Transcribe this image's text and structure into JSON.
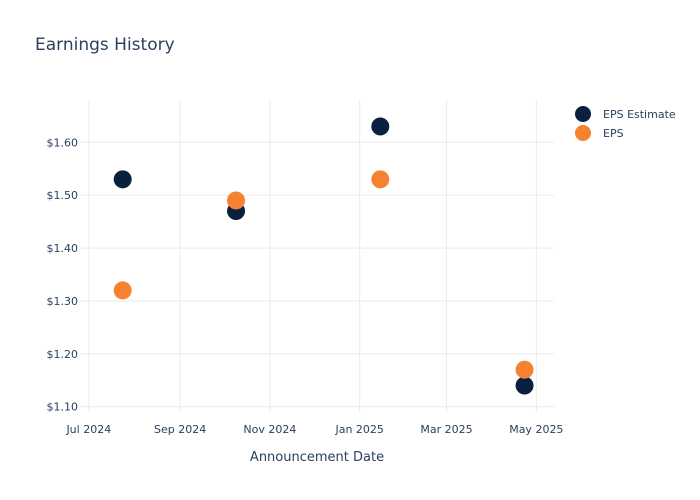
{
  "chart_data": {
    "type": "scatter",
    "title": "Earnings History",
    "xlabel": "Announcement Date",
    "ylabel": "",
    "x_axis": {
      "type": "date",
      "range": [
        "2024-06-25",
        "2025-05-13"
      ],
      "ticks": [
        {
          "date": "2024-07-01",
          "label": "Jul 2024"
        },
        {
          "date": "2024-09-01",
          "label": "Sep 2024"
        },
        {
          "date": "2024-11-01",
          "label": "Nov 2024"
        },
        {
          "date": "2025-01-01",
          "label": "Jan 2025"
        },
        {
          "date": "2025-03-01",
          "label": "Mar 2025"
        },
        {
          "date": "2025-05-01",
          "label": "May 2025"
        }
      ]
    },
    "y_axis": {
      "range": [
        1.09,
        1.68
      ],
      "ticks": [
        {
          "value": 1.1,
          "label": "$1.10"
        },
        {
          "value": 1.2,
          "label": "$1.20"
        },
        {
          "value": 1.3,
          "label": "$1.30"
        },
        {
          "value": 1.4,
          "label": "$1.40"
        },
        {
          "value": 1.5,
          "label": "$1.50"
        },
        {
          "value": 1.6,
          "label": "$1.60"
        }
      ]
    },
    "grid": true,
    "legend_position": "top-right",
    "series": [
      {
        "name": "EPS Estimate",
        "color": "#0b1f3f",
        "points": [
          {
            "x": "2024-07-24",
            "y": 1.53
          },
          {
            "x": "2024-10-09",
            "y": 1.47
          },
          {
            "x": "2025-01-15",
            "y": 1.63
          },
          {
            "x": "2025-04-23",
            "y": 1.14
          }
        ]
      },
      {
        "name": "EPS",
        "color": "#f58231",
        "points": [
          {
            "x": "2024-07-24",
            "y": 1.32
          },
          {
            "x": "2024-10-09",
            "y": 1.49
          },
          {
            "x": "2025-01-15",
            "y": 1.53
          },
          {
            "x": "2025-04-23",
            "y": 1.17
          }
        ]
      }
    ]
  }
}
